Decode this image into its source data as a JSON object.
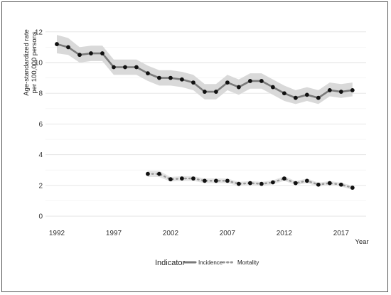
{
  "chart_data": {
    "type": "line",
    "xlabel": "Year",
    "ylabel_lines": [
      "Age-standardized rate",
      "per 100,000 persons"
    ],
    "x_ticks": [
      1992,
      1997,
      2002,
      2007,
      2012,
      2017
    ],
    "y_ticks": [
      0,
      2,
      4,
      6,
      8,
      10,
      12
    ],
    "xlim": [
      1991,
      2019.2
    ],
    "ylim": [
      -0.6,
      12.5
    ],
    "grid": "horizontal major and minor",
    "legend": {
      "title": "Indicator",
      "position": "bottom"
    },
    "series": [
      {
        "name": "Incidence",
        "style": "solid",
        "color": "#7a7a7a",
        "band_color": "#d9d9d9",
        "x": [
          1992,
          1993,
          1994,
          1995,
          1996,
          1997,
          1998,
          1999,
          2000,
          2001,
          2002,
          2003,
          2004,
          2005,
          2006,
          2007,
          2008,
          2009,
          2010,
          2011,
          2012,
          2013,
          2014,
          2015,
          2016,
          2017,
          2018
        ],
        "values": [
          11.2,
          11.0,
          10.5,
          10.6,
          10.6,
          9.7,
          9.7,
          9.7,
          9.3,
          9.0,
          9.0,
          8.9,
          8.7,
          8.1,
          8.1,
          8.7,
          8.4,
          8.8,
          8.8,
          8.4,
          8.0,
          7.7,
          7.9,
          7.7,
          8.2,
          8.1,
          8.2
        ],
        "lower": [
          10.6,
          10.5,
          10.0,
          10.1,
          10.1,
          9.2,
          9.2,
          9.2,
          8.8,
          8.5,
          8.5,
          8.4,
          8.2,
          7.6,
          7.6,
          8.2,
          7.9,
          8.3,
          8.3,
          7.9,
          7.5,
          7.3,
          7.5,
          7.3,
          7.8,
          7.7,
          7.8
        ],
        "upper": [
          11.8,
          11.6,
          11.0,
          11.1,
          11.1,
          10.2,
          10.2,
          10.2,
          9.8,
          9.5,
          9.5,
          9.4,
          9.2,
          8.6,
          8.6,
          9.2,
          8.9,
          9.3,
          9.3,
          8.9,
          8.5,
          8.2,
          8.4,
          8.2,
          8.7,
          8.6,
          8.7
        ]
      },
      {
        "name": "Mortality",
        "style": "dotted",
        "color": "#9a9a9a",
        "band_color": "#e4e4e4",
        "x": [
          2000,
          2001,
          2002,
          2003,
          2004,
          2005,
          2006,
          2007,
          2008,
          2009,
          2010,
          2011,
          2012,
          2013,
          2014,
          2015,
          2016,
          2017,
          2018
        ],
        "values": [
          2.75,
          2.75,
          2.4,
          2.45,
          2.45,
          2.3,
          2.3,
          2.3,
          2.1,
          2.15,
          2.1,
          2.2,
          2.45,
          2.15,
          2.3,
          2.05,
          2.15,
          2.05,
          1.85
        ],
        "lower": [
          2.55,
          2.55,
          2.25,
          2.3,
          2.3,
          2.15,
          2.15,
          2.15,
          1.97,
          2.02,
          1.97,
          2.07,
          2.3,
          2.02,
          2.15,
          1.92,
          2.02,
          1.92,
          1.72
        ],
        "upper": [
          2.95,
          2.95,
          2.55,
          2.6,
          2.6,
          2.45,
          2.45,
          2.45,
          2.23,
          2.28,
          2.23,
          2.33,
          2.6,
          2.28,
          2.45,
          2.18,
          2.28,
          2.18,
          1.98
        ]
      }
    ]
  }
}
